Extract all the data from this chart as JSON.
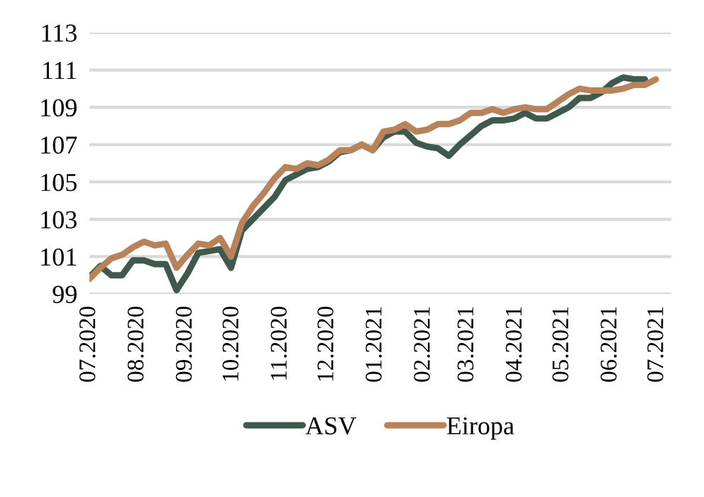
{
  "chart_data": {
    "type": "line",
    "x": [
      "2020-07-01",
      "2020-07-08",
      "2020-07-15",
      "2020-07-22",
      "2020-07-29",
      "2020-08-05",
      "2020-08-12",
      "2020-08-19",
      "2020-08-26",
      "2020-09-02",
      "2020-09-09",
      "2020-09-16",
      "2020-09-23",
      "2020-09-30",
      "2020-10-07",
      "2020-10-14",
      "2020-10-21",
      "2020-10-28",
      "2020-11-04",
      "2020-11-11",
      "2020-11-18",
      "2020-11-25",
      "2020-12-02",
      "2020-12-09",
      "2020-12-16",
      "2020-12-23",
      "2020-12-30",
      "2021-01-06",
      "2021-01-13",
      "2021-01-20",
      "2021-01-27",
      "2021-02-03",
      "2021-02-10",
      "2021-02-17",
      "2021-02-24",
      "2021-03-03",
      "2021-03-10",
      "2021-03-17",
      "2021-03-24",
      "2021-03-31",
      "2021-04-07",
      "2021-04-14",
      "2021-04-21",
      "2021-04-28",
      "2021-05-05",
      "2021-05-12",
      "2021-05-19",
      "2021-05-26",
      "2021-06-02",
      "2021-06-09",
      "2021-06-16",
      "2021-06-23",
      "2021-06-30"
    ],
    "series": [
      {
        "name": "ASV",
        "color": "#3f5a4c",
        "values": [
          99.9,
          100.5,
          100.0,
          100.0,
          100.8,
          100.8,
          100.6,
          100.6,
          99.2,
          100.1,
          101.2,
          101.3,
          101.4,
          100.4,
          102.4,
          103.0,
          103.6,
          104.2,
          105.1,
          105.4,
          105.7,
          105.8,
          106.1,
          106.6,
          106.7,
          107.0,
          106.7,
          107.4,
          107.7,
          107.7,
          107.1,
          106.9,
          106.8,
          106.4,
          107.0,
          107.5,
          108.0,
          108.3,
          108.3,
          108.4,
          108.7,
          108.4,
          108.4,
          108.7,
          109.0,
          109.5,
          109.5,
          109.8,
          110.3,
          110.6,
          110.5,
          110.5,
          null
        ]
      },
      {
        "name": "Eiropa",
        "color": "#b8835a",
        "values": [
          99.8,
          100.4,
          100.9,
          101.1,
          101.5,
          101.8,
          101.6,
          101.7,
          100.4,
          101.1,
          101.7,
          101.6,
          102.0,
          101.0,
          102.8,
          103.7,
          104.4,
          105.2,
          105.8,
          105.7,
          106.0,
          105.9,
          106.2,
          106.7,
          106.7,
          107.0,
          106.7,
          107.7,
          107.8,
          108.1,
          107.7,
          107.8,
          108.1,
          108.1,
          108.3,
          108.7,
          108.7,
          108.9,
          108.7,
          108.9,
          109.0,
          108.9,
          108.9,
          109.3,
          109.7,
          110.0,
          109.9,
          109.9,
          109.9,
          110.0,
          110.2,
          110.2,
          110.5
        ]
      }
    ],
    "xlim": [
      "2020-07-01",
      "2021-07-10"
    ],
    "xticks": [
      {
        "value": "2020-07-01",
        "label": "07.2020"
      },
      {
        "value": "2020-08-01",
        "label": "08.2020"
      },
      {
        "value": "2020-09-01",
        "label": "09.2020"
      },
      {
        "value": "2020-10-01",
        "label": "10.2020"
      },
      {
        "value": "2020-11-01",
        "label": "11.2020"
      },
      {
        "value": "2020-12-01",
        "label": "12.2020"
      },
      {
        "value": "2021-01-01",
        "label": "01.2021"
      },
      {
        "value": "2021-02-01",
        "label": "02.2021"
      },
      {
        "value": "2021-03-01",
        "label": "03.2021"
      },
      {
        "value": "2021-04-01",
        "label": "04.2021"
      },
      {
        "value": "2021-05-01",
        "label": "05.2021"
      },
      {
        "value": "2021-06-01",
        "label": "06.2021"
      },
      {
        "value": "2021-07-01",
        "label": "07.2021"
      }
    ],
    "ylim": [
      99,
      113
    ],
    "yticks": [
      99,
      101,
      103,
      105,
      107,
      109,
      111,
      113
    ],
    "grid": "y",
    "legend": "bottom",
    "line_style": "solid",
    "marker": "none"
  }
}
